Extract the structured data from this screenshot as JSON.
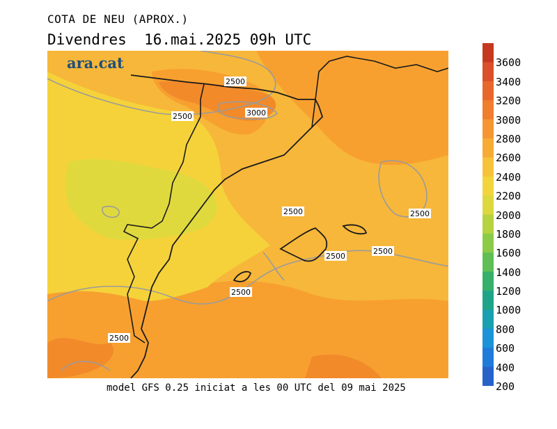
{
  "header": {
    "title": "COTA DE NEU (APROX.)",
    "date_line": "Divendres  16.mai.2025 09h UTC"
  },
  "logo": {
    "text": "ara.cat",
    "color": "#1c4e7c"
  },
  "footer": {
    "text": "model GFS 0.25 iniciat a les 00 UTC del 09 mai 2025"
  },
  "map": {
    "contour_labels": [
      "2500",
      "3000",
      "2500",
      "2500",
      "2500",
      "2500",
      "2500",
      "2500",
      "2500"
    ],
    "colors": {
      "band_2200_2400": "#f5d23a",
      "band_2400_2600": "#f7b73a",
      "band_2600_2800": "#f7a030",
      "band_2800_3000": "#f28a2a",
      "band_2000_2200": "#dfd93e",
      "contour_line": "#9b9b9b",
      "coastline": "#1a1a1a"
    }
  },
  "legend": {
    "labels": [
      "3600",
      "3400",
      "3200",
      "3000",
      "2800",
      "2600",
      "2400",
      "2200",
      "2000",
      "1800",
      "1600",
      "1400",
      "1200",
      "1000",
      "800",
      "600",
      "400",
      "200"
    ],
    "colors": [
      "#c53a1e",
      "#d9502a",
      "#e8672c",
      "#f07e2e",
      "#f59632",
      "#f7ab35",
      "#f6c23a",
      "#f2d43c",
      "#dcd83e",
      "#b6d240",
      "#8ccb48",
      "#5fbf55",
      "#36b06b",
      "#20a488",
      "#1aa0b0",
      "#1a93d8",
      "#1f7bd9",
      "#2563c8"
    ]
  }
}
